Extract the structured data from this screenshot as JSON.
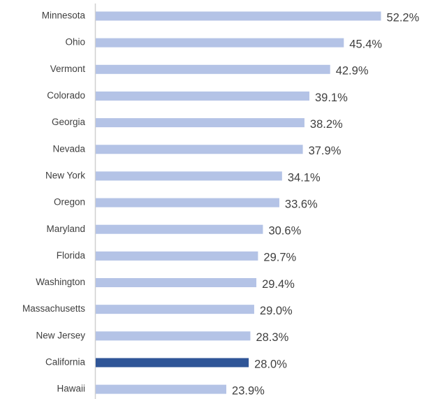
{
  "chart_data": {
    "type": "hbar",
    "categories": [
      "Minnesota",
      "Ohio",
      "Vermont",
      "Colorado",
      "Georgia",
      "Nevada",
      "New York",
      "Oregon",
      "Maryland",
      "Florida",
      "Washington",
      "Massachusetts",
      "New Jersey",
      "California",
      "Hawaii"
    ],
    "values": [
      52.2,
      45.4,
      42.9,
      39.1,
      38.2,
      37.9,
      34.1,
      33.6,
      30.6,
      29.7,
      29.4,
      29.0,
      28.3,
      28.0,
      23.9
    ],
    "value_labels": [
      "52.2%",
      "45.4%",
      "42.9%",
      "39.1%",
      "38.2%",
      "37.9%",
      "34.1%",
      "33.6%",
      "30.6%",
      "29.7%",
      "29.4%",
      "29.0%",
      "28.3%",
      "28.0%",
      "23.9%"
    ],
    "colors": [
      "#b4c3e6",
      "#b4c3e6",
      "#b4c3e6",
      "#b4c3e6",
      "#b4c3e6",
      "#b4c3e6",
      "#b4c3e6",
      "#b4c3e6",
      "#b4c3e6",
      "#b4c3e6",
      "#b4c3e6",
      "#b4c3e6",
      "#b4c3e6",
      "#2f5597",
      "#b4c3e6"
    ],
    "xlim": [
      0,
      63
    ]
  }
}
